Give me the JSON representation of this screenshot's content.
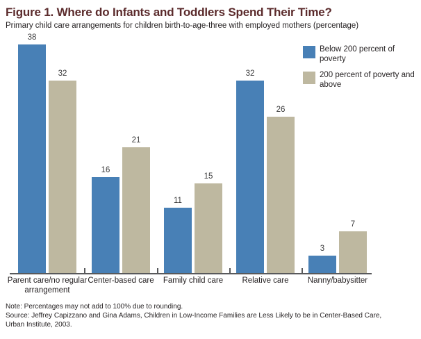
{
  "header": {
    "title": "Figure 1. Where do Infants and Toddlers Spend Their Time?",
    "subtitle": "Primary child care arrangements for children birth-to-age-three with employed mothers (percentage)"
  },
  "legend": [
    {
      "label": "Below 200 percent of poverty",
      "color": "#4880b6"
    },
    {
      "label": "200 percent of poverty and above",
      "color": "#beb8a0"
    }
  ],
  "chart_data": {
    "type": "bar",
    "title": "Figure 1. Where do Infants and Toddlers Spend Their Time?",
    "subtitle": "Primary child care arrangements for children birth-to-age-three with employed mothers (percentage)",
    "categories": [
      "Parent care/no regular arrangement",
      "Center-based care",
      "Family child care",
      "Relative care",
      "Nanny/babysitter"
    ],
    "series": [
      {
        "name": "Below 200 percent of poverty",
        "color": "#4880b6",
        "values": [
          38,
          16,
          11,
          32,
          3
        ]
      },
      {
        "name": "200 percent of poverty and above",
        "color": "#beb8a0",
        "values": [
          32,
          21,
          15,
          26,
          7
        ]
      }
    ],
    "xlabel": "",
    "ylabel": "",
    "ylim": [
      0,
      40
    ],
    "grid": false,
    "y_axis_shown": false,
    "data_labels": true,
    "legend_position": "top-right"
  },
  "colors": {
    "title": "#5b2b2c",
    "axis": "#58595b",
    "text": "#231f20",
    "background": "#ffffff"
  },
  "notes": {
    "note": "Note: Percentages may not add to 100% due to rounding.",
    "source_line1": "Source: Jeffrey Capizzano and Gina Adams, Children in Low-Income Families are Less Likely to be in Center-Based Care,",
    "source_line2": "Urban Institute, 2003."
  }
}
